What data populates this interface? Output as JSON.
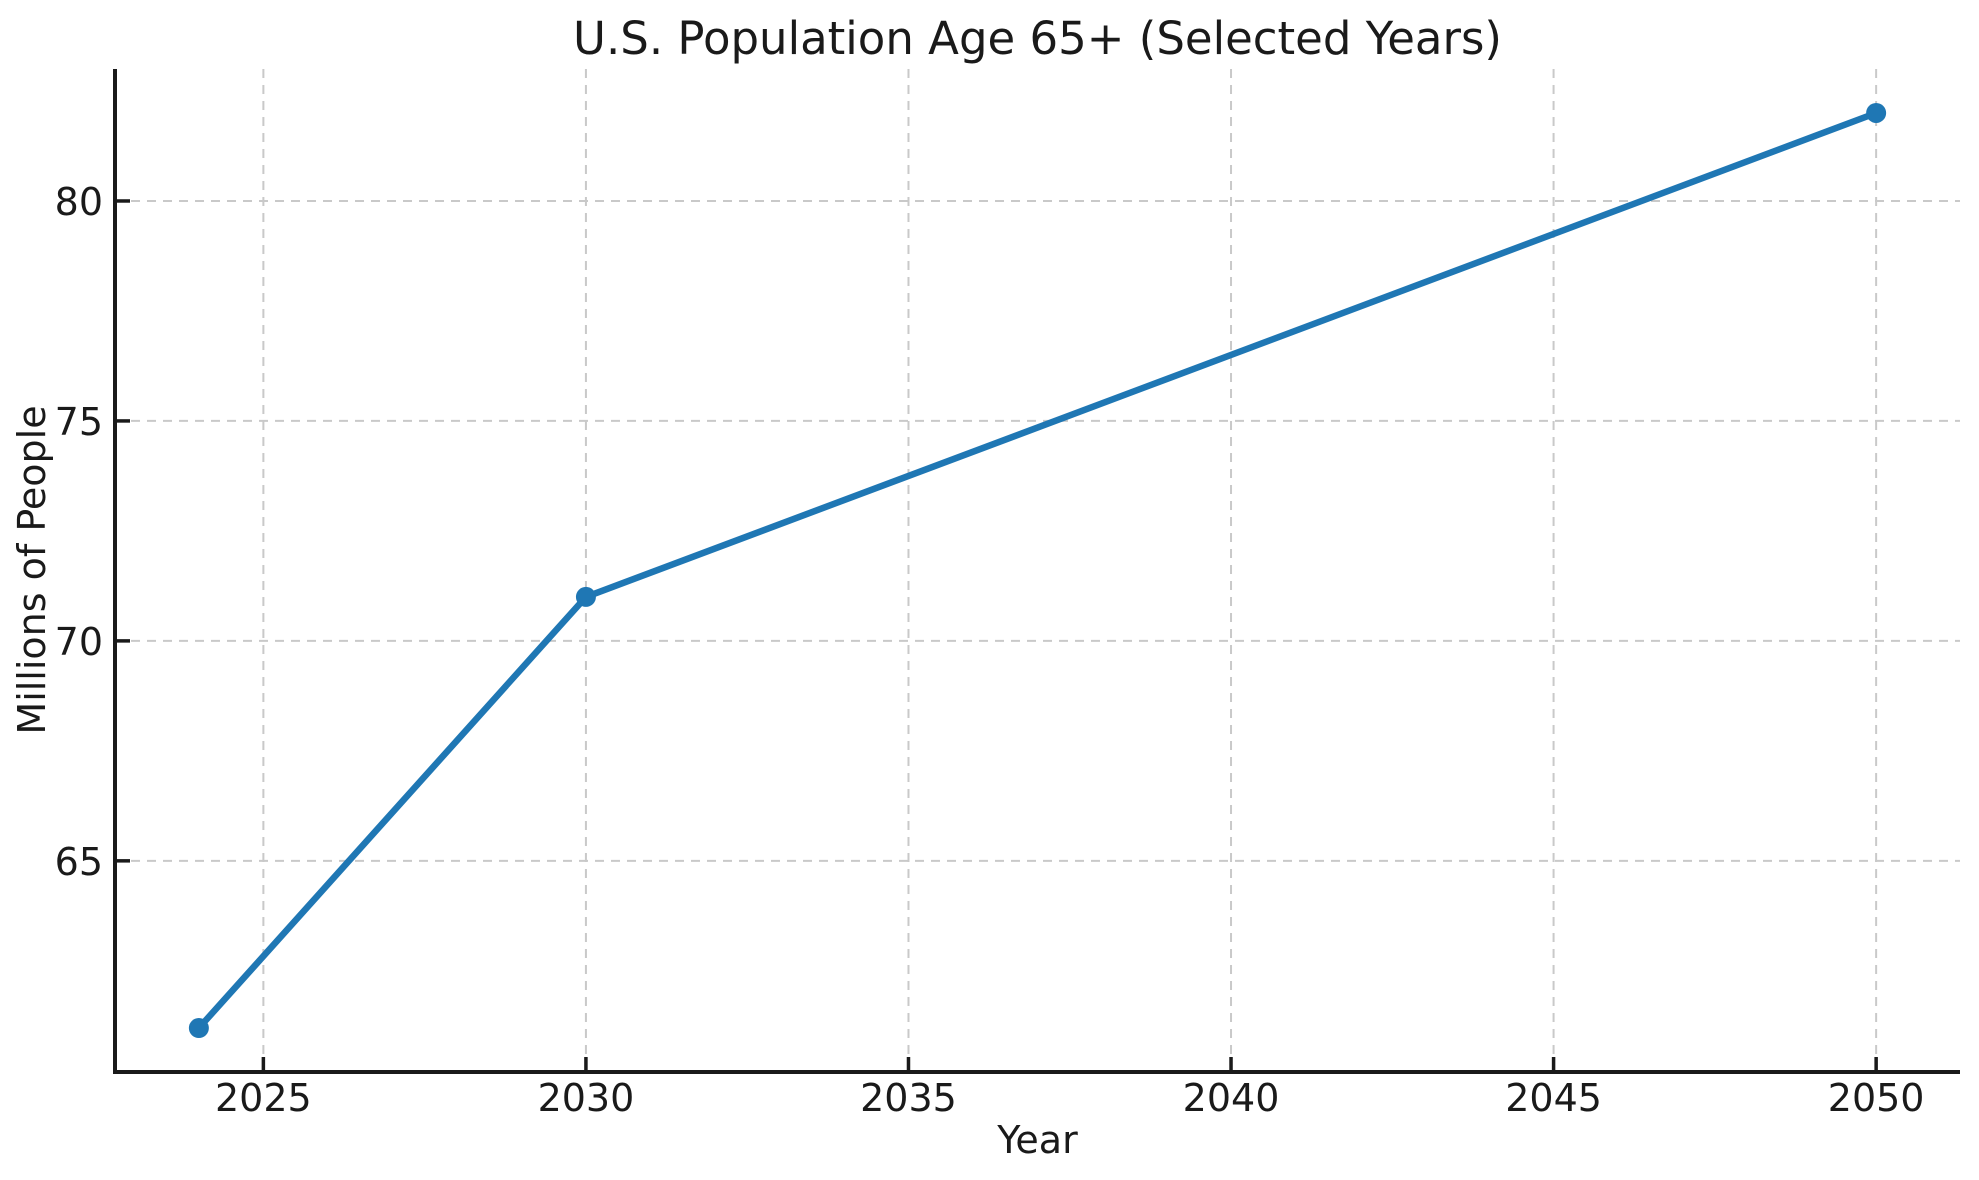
{
  "figure": {
    "background": "#ffffff"
  },
  "chart_data": {
    "type": "line",
    "title": "U.S. Population Age 65+ (Selected Years)",
    "xlabel": "Year",
    "ylabel": "Millions of People",
    "x": [
      2024,
      2030,
      2050
    ],
    "y": [
      61.2,
      71,
      82
    ],
    "xticks": [
      2025,
      2030,
      2035,
      2040,
      2045,
      2050
    ],
    "yticks": [
      65,
      70,
      75,
      80
    ],
    "xlim": [
      2022.7,
      2051.3
    ],
    "ylim": [
      60.2,
      83.0
    ],
    "grid": true,
    "grid_style": "dashed",
    "legend": "none",
    "line_color": "#1f77b4",
    "marker": "circle",
    "marker_color": "#1f77b4",
    "axis_color": "#1a1a1a",
    "grid_color": "#c9c9c9",
    "text_color": "#1a1a1a"
  }
}
